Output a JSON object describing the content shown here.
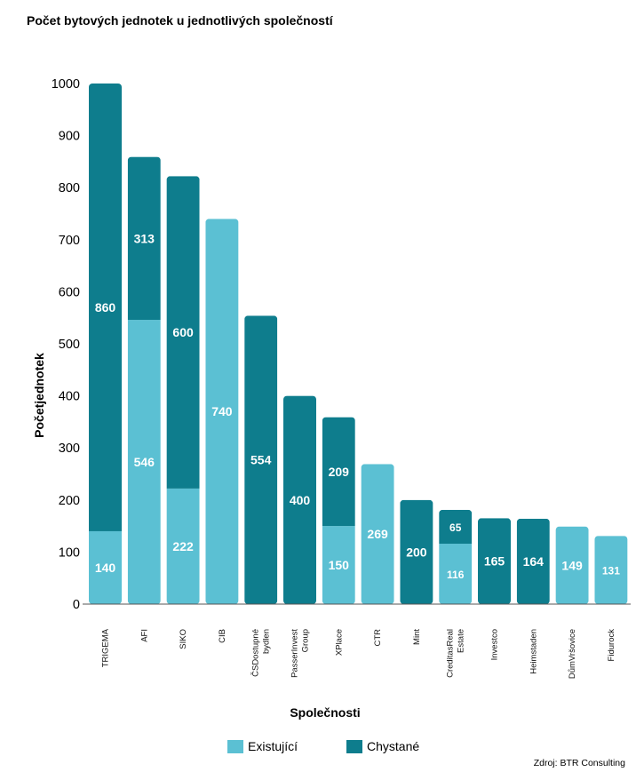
{
  "chart_data": {
    "type": "bar",
    "stacked": true,
    "title": "Počet bytových jednotek u jednotlivých společností",
    "xlabel": "Společnosti",
    "ylabel": "Početjednotek",
    "ylim": [
      0,
      1000
    ],
    "yticks": [
      "0",
      "100",
      "200",
      "300",
      "400",
      "500",
      "600",
      "700",
      "800",
      "900",
      "1000"
    ],
    "categories": [
      "TRIGEMA",
      "AFI",
      "SIKO",
      "CIB",
      "ČSDostupné bydlen",
      "PasserInvest Group",
      "XPlace",
      "CTR",
      "Mint",
      "CreditasReal Estate",
      "Investco",
      "Heimstaden",
      "DůmVršovice",
      "Fidurock"
    ],
    "category_lines": [
      [
        "TRIGEMA"
      ],
      [
        "AFI"
      ],
      [
        "SIKO"
      ],
      [
        "CIB"
      ],
      [
        "ČSDostupné",
        "bydlen"
      ],
      [
        "PasserInvest",
        "Group"
      ],
      [
        "XPlace"
      ],
      [
        "CTR"
      ],
      [
        "Mint"
      ],
      [
        "CreditasReal",
        "Estate"
      ],
      [
        "Investco"
      ],
      [
        "Heimstaden"
      ],
      [
        "DůmVršovice"
      ],
      [
        "Fidurock"
      ]
    ],
    "series": [
      {
        "name": "Existující",
        "color": "#5bc0d3",
        "values": [
          140,
          546,
          222,
          740,
          0,
          0,
          150,
          269,
          0,
          116,
          0,
          0,
          149,
          131
        ]
      },
      {
        "name": "Chystané",
        "color": "#0e7d8d",
        "values": [
          860,
          313,
          600,
          0,
          554,
          400,
          209,
          0,
          200,
          65,
          165,
          164,
          0,
          0
        ]
      }
    ],
    "grid": false,
    "legend_position": "bottom"
  },
  "source_note": "Zdroj: BTR Consulting"
}
